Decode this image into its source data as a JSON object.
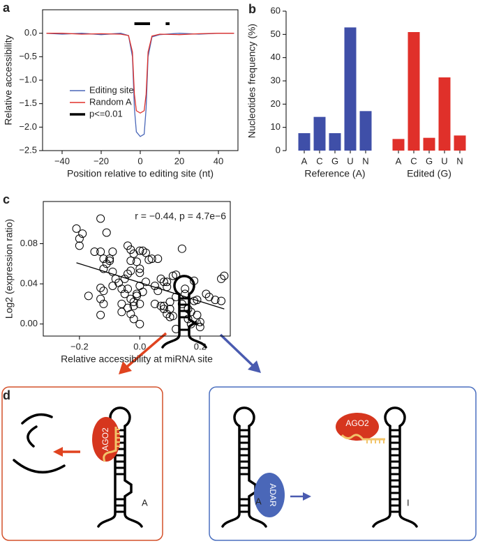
{
  "chart_data": [
    {
      "type": "line",
      "panel_label": "a",
      "y_label": "Relative accessibility",
      "x_label": "Position relative to editing site (nt)",
      "x": [
        -48,
        -40,
        -30,
        -20,
        -10,
        -6,
        -4,
        -3,
        -2,
        0,
        2,
        3,
        4,
        6,
        10,
        20,
        30,
        40,
        48
      ],
      "series": [
        {
          "name": "Editing site",
          "color": "#4a67b8",
          "values": [
            0,
            -0.02,
            0,
            -0.03,
            0,
            -0.05,
            -0.5,
            -1.6,
            -2.1,
            -2.2,
            -2.15,
            -1.6,
            -0.5,
            -0.08,
            -0.03,
            0,
            -0.02,
            0,
            0
          ]
        },
        {
          "name": "Random A",
          "color": "#e0302a",
          "values": [
            0,
            0,
            -0.02,
            -0.01,
            -0.02,
            -0.05,
            -0.4,
            -1.3,
            -1.65,
            -1.7,
            -1.65,
            -1.3,
            -0.4,
            -0.06,
            -0.02,
            -0.03,
            -0.01,
            0,
            0
          ]
        }
      ],
      "significance": {
        "name": "p<=0.01",
        "color": "#000000",
        "segments": [
          [
            -3,
            5
          ],
          [
            13,
            15
          ]
        ]
      },
      "xlim": [
        -50,
        50
      ],
      "ylim": [
        -2.5,
        0.5
      ],
      "xticks": [
        {
          "value": -40,
          "label": "−40"
        },
        {
          "value": -20,
          "label": "−20"
        },
        0,
        20,
        40
      ],
      "yticks": [
        {
          "value": -2.5,
          "label": "−2.5"
        },
        {
          "value": -2,
          "label": "−2.0"
        },
        {
          "value": -1.5,
          "label": "−1.5"
        },
        {
          "value": -1,
          "label": "−1.0"
        },
        {
          "value": -0.5,
          "label": "−0.5"
        },
        {
          "value": 0,
          "label": "0.0"
        }
      ]
    },
    {
      "type": "bar",
      "panel_label": "b",
      "y_label": "Nucleotides frequency (%)",
      "categories": [
        "A",
        "C",
        "G",
        "U",
        "N"
      ],
      "series": [
        {
          "name": "Reference (A)",
          "color": "#3f4fa8",
          "values": [
            7.5,
            14.5,
            7.5,
            53,
            17
          ]
        },
        {
          "name": "Edited (G)",
          "color": "#e0302a",
          "values": [
            5,
            51,
            5.5,
            31.5,
            6.5
          ]
        }
      ],
      "ylim": [
        0,
        60
      ],
      "yticks": [
        0,
        10,
        20,
        30,
        40,
        50,
        60
      ]
    },
    {
      "type": "scatter",
      "panel_label": "c",
      "y_label": "Log2 (expression ratio)",
      "x_label": "Relative accessibility at miRNA site",
      "annotation": "r = −0.44, p = 4.7e−6",
      "x": [
        -0.21,
        -0.2,
        -0.19,
        -0.2,
        -0.13,
        -0.15,
        -0.13,
        -0.12,
        -0.11,
        -0.11,
        -0.1,
        -0.1,
        -0.12,
        -0.17,
        -0.13,
        -0.12,
        -0.13,
        -0.12,
        -0.13,
        -0.09,
        -0.09,
        -0.08,
        -0.07,
        -0.09,
        -0.06,
        -0.05,
        -0.04,
        -0.03,
        -0.02,
        -0.01,
        -0.03,
        -0.03,
        -0.04,
        -0.04,
        -0.05,
        -0.06,
        -0.06,
        -0.04,
        -0.03,
        -0.02,
        -0.02,
        -0.03,
        -0.02,
        -0.01,
        0.0,
        0.01,
        0.02,
        0.0,
        0.0,
        0.02,
        0.0,
        0.01,
        -0.01,
        0.0,
        0.0,
        0.03,
        0.04,
        0.06,
        0.05,
        0.06,
        0.07,
        0.08,
        0.09,
        0.09,
        0.05,
        0.07,
        0.08,
        0.08,
        0.09,
        0.1,
        0.1,
        0.11,
        0.12,
        0.11,
        0.1,
        0.12,
        0.12,
        0.14,
        0.15,
        0.15,
        0.14,
        0.16,
        0.16,
        0.17,
        0.17,
        0.18,
        0.19,
        0.18,
        0.2,
        0.22,
        0.23,
        0.25,
        0.27,
        0.28,
        0.27,
        0.2,
        0.19
      ],
      "values": [
        0.095,
        0.085,
        0.09,
        0.078,
        0.105,
        0.072,
        0.072,
        0.065,
        0.091,
        0.06,
        0.063,
        0.065,
        0.055,
        0.028,
        0.036,
        0.033,
        0.025,
        0.02,
        0.009,
        0.072,
        0.052,
        0.045,
        0.041,
        0.038,
        0.035,
        0.045,
        0.078,
        0.074,
        0.07,
        0.062,
        0.063,
        0.053,
        0.05,
        0.035,
        0.03,
        0.02,
        0.012,
        0.016,
        0.025,
        0.022,
        0.018,
        0.01,
        0.005,
        0.03,
        0.073,
        0.073,
        0.071,
        0.055,
        0.051,
        0.042,
        0.038,
        0.032,
        0.028,
        0.02,
        0.0,
        0.064,
        0.065,
        0.065,
        0.038,
        0.033,
        0.045,
        0.042,
        0.042,
        0.037,
        0.02,
        0.018,
        0.015,
        0.018,
        0.01,
        0.022,
        0.015,
        0.048,
        0.049,
        0.008,
        0.007,
        0.027,
        -0.005,
        0.075,
        0.035,
        0.03,
        0.02,
        0.015,
        0.005,
        0.012,
        0.0,
        0.043,
        0.024,
        0.023,
        0.002,
        0.03,
        0.027,
        0.024,
        0.023,
        0.048,
        0.045,
        -0.003,
        0.009
      ],
      "fit": {
        "x": [
          -0.21,
          0.28
        ],
        "values": [
          0.061,
          0.015
        ]
      },
      "xlim": [
        -0.32,
        0.3
      ],
      "ylim": [
        -0.012,
        0.122
      ],
      "xticks": [
        {
          "value": -0.2,
          "label": "−0.2"
        },
        {
          "value": 0,
          "label": "0.0"
        },
        {
          "value": 0.2,
          "label": "0.2"
        }
      ],
      "yticks": [
        {
          "value": 0,
          "label": "0.00"
        },
        {
          "value": 0.04,
          "label": "0.04"
        },
        {
          "value": 0.08,
          "label": "0.08"
        }
      ]
    }
  ],
  "diagram": {
    "panel_label": "d",
    "hairpin_base": "A",
    "left_box": {
      "ago2": "AGO2",
      "base": "A"
    },
    "right_box": {
      "adar": "ADAR",
      "base": "A",
      "ago2": "AGO2",
      "edited_base": "I"
    }
  }
}
